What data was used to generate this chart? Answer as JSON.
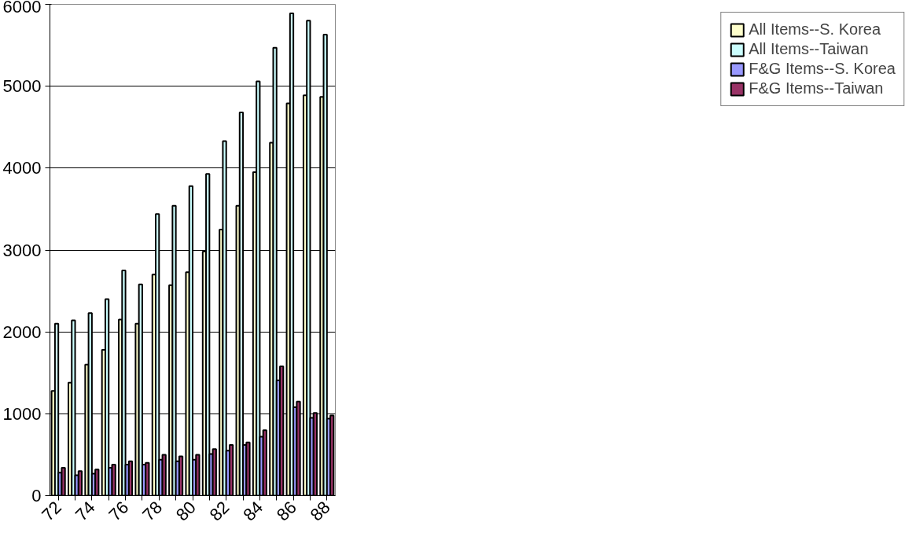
{
  "chart_data": {
    "type": "bar",
    "categories": [
      "72",
      null,
      "74",
      null,
      "76",
      null,
      "78",
      null,
      "80",
      null,
      "82",
      null,
      "84",
      null,
      "86",
      null,
      "88"
    ],
    "series": [
      {
        "name": "All Items--S. Korea",
        "color": "#ffffcc",
        "values": [
          1280,
          1380,
          1600,
          1780,
          2150,
          2100,
          2700,
          2570,
          2730,
          2980,
          3250,
          3540,
          3950,
          4310,
          4790,
          4890,
          4870
        ]
      },
      {
        "name": "All Items--Taiwan",
        "color": "#ccffff",
        "values": [
          2100,
          2140,
          2230,
          2400,
          2750,
          2580,
          3440,
          3540,
          3780,
          3930,
          4330,
          4680,
          5060,
          5470,
          5890,
          5800,
          5630
        ]
      },
      {
        "name": "F&G Items--S. Korea",
        "color": "#9999ff",
        "values": [
          280,
          250,
          270,
          340,
          380,
          380,
          440,
          420,
          440,
          510,
          550,
          620,
          720,
          1410,
          1080,
          950,
          940
        ]
      },
      {
        "name": "F&G Items--Taiwan",
        "color": "#993366",
        "values": [
          340,
          300,
          320,
          380,
          420,
          400,
          500,
          480,
          500,
          570,
          620,
          650,
          800,
          1580,
          1150,
          1010,
          980
        ]
      }
    ],
    "ylim": [
      0,
      6000
    ],
    "yticks": [
      0,
      1000,
      2000,
      3000,
      4000,
      5000,
      6000
    ],
    "grid": "y",
    "legend": "right"
  }
}
